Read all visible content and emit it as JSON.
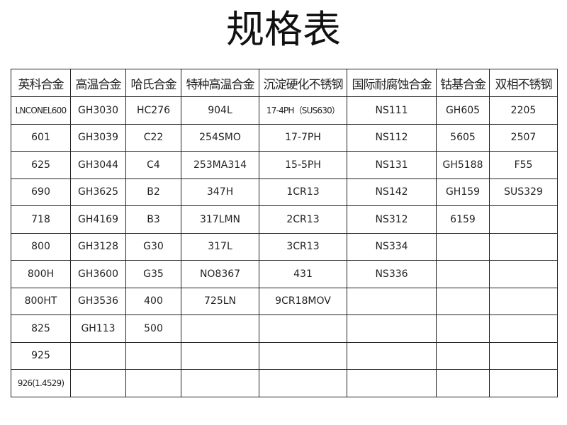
{
  "title": "规格表",
  "table": {
    "headers": [
      "英科合金",
      "高温合金",
      "哈氏合金",
      "特种高温合金",
      "沉淀硬化不锈钢",
      "国际耐腐蚀合金",
      "钴基合金",
      "双相不锈钢"
    ],
    "rows": [
      [
        "LNCONEL600",
        "GH3030",
        "HC276",
        "904L",
        "17-4PH（SUS630）",
        "NS111",
        "GH605",
        "2205"
      ],
      [
        "601",
        "GH3039",
        "C22",
        "254SMO",
        "17-7PH",
        "NS112",
        "5605",
        "2507"
      ],
      [
        "625",
        "GH3044",
        "C4",
        "253MA314",
        "15-5PH",
        "NS131",
        "GH5188",
        "F55"
      ],
      [
        "690",
        "GH3625",
        "B2",
        "347H",
        "1CR13",
        "NS142",
        "GH159",
        "SUS329"
      ],
      [
        "718",
        "GH4169",
        "B3",
        "317LMN",
        "2CR13",
        "NS312",
        "6159",
        ""
      ],
      [
        "800",
        "GH3128",
        "G30",
        "317L",
        "3CR13",
        "NS334",
        "",
        ""
      ],
      [
        "800H",
        "GH3600",
        "G35",
        "NO8367",
        "431",
        "NS336",
        "",
        ""
      ],
      [
        "800HT",
        "GH3536",
        "400",
        "725LN",
        "9CR18MOV",
        "",
        "",
        ""
      ],
      [
        "825",
        "GH113",
        "500",
        "",
        "",
        "",
        "",
        ""
      ],
      [
        "925",
        "",
        "",
        "",
        "",
        "",
        "",
        ""
      ],
      [
        "926(1.4529)",
        "",
        "",
        "",
        "",
        "",
        "",
        ""
      ]
    ]
  }
}
